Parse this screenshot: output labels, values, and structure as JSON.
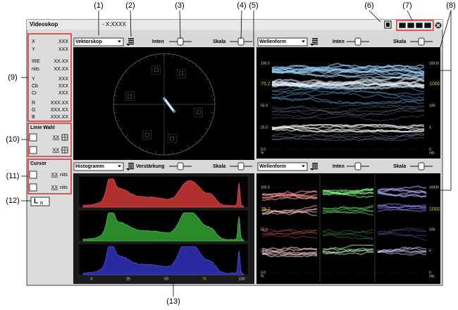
{
  "callouts": [
    "(1)",
    "(2)",
    "(3)",
    "(4)",
    "(5)",
    "(6)",
    "(7)",
    "(8)",
    "(9)",
    "(10)",
    "(11)",
    "(12)",
    "(13)"
  ],
  "window": {
    "title": "Videoskop",
    "subtitle": "- X:XXXX"
  },
  "info": [
    {
      "label": "X",
      "value": "XXX"
    },
    {
      "label": "Y",
      "value": "XXX"
    },
    {
      "label": "IRE",
      "value": "XX.XX"
    },
    {
      "label": "nits",
      "value": "XX.XX"
    },
    {
      "label": "Y",
      "value": "XXX"
    },
    {
      "label": "Cb",
      "value": "XXX"
    },
    {
      "label": "Cr",
      "value": "XXX"
    },
    {
      "label": "R",
      "value": "XXX.XX"
    },
    {
      "label": "G",
      "value": "XXX.XX"
    },
    {
      "label": "B",
      "value": "XXX.XX"
    }
  ],
  "line_select": {
    "title": "Linie Wahl",
    "values": [
      "XX",
      "XX"
    ]
  },
  "cursor": {
    "title": "Cursor",
    "rows": [
      {
        "value": "XX",
        "unit": "nits"
      },
      {
        "value": "XX",
        "unit": "nits"
      }
    ]
  },
  "lr_button": {
    "main": "L",
    "sub": "R"
  },
  "vectorscope_pane": {
    "dropdown": "Vektorskop",
    "intensity": "Inten",
    "scale": "Skala"
  },
  "waveform_top": {
    "dropdown": "Wellenform",
    "intensity": "Inten",
    "scale": "Skala",
    "left_labels": [
      "100.0",
      "75.2",
      "50.0",
      "25.0",
      "0.0",
      "%"
    ],
    "right_labels": [
      "10000",
      "1000",
      "100",
      "5",
      "0",
      "nits"
    ]
  },
  "histogram_pane": {
    "dropdown": "Histogramm",
    "gain": "Verstärkung",
    "scale": "Skala",
    "axis_labels": [
      "0",
      "25",
      "50",
      "75",
      "100"
    ]
  },
  "waveform_bottom": {
    "dropdown": "Wellenform",
    "intensity": "Inten",
    "scale": "Skala",
    "left_labels": [
      "100.0",
      "75.2",
      "50.0",
      "25.0",
      "0.0",
      "%"
    ],
    "right_labels": [
      "10000",
      "1000",
      "100",
      "5",
      "0",
      "nits"
    ]
  }
}
